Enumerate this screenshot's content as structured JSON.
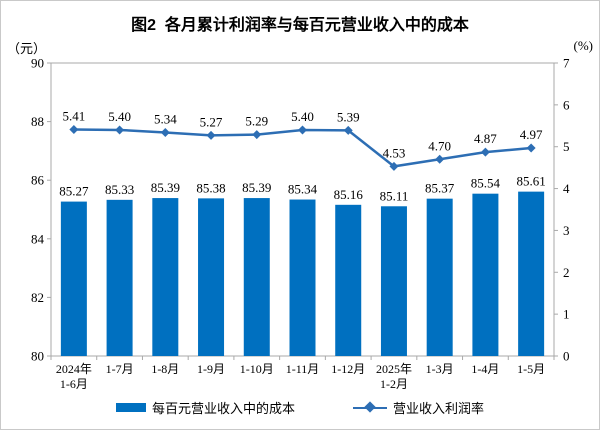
{
  "title": "图2  各月累计利润率与每百元营业收入中的成本",
  "left_axis_unit": "（元）",
  "right_axis_unit": "(%)",
  "colors": {
    "bar": "#0070C0",
    "line": "#2D6EB4",
    "axis": "#A9A9A9",
    "text": "#000000"
  },
  "chart_data": {
    "type": "bar+line combo",
    "title": "图2  各月累计利润率与每百元营业收入中的成本",
    "categories": [
      [
        "2024年",
        "1-6月"
      ],
      [
        "1-7月"
      ],
      [
        "1-8月"
      ],
      [
        "1-9月"
      ],
      [
        "1-10月"
      ],
      [
        "1-11月"
      ],
      [
        "1-12月"
      ],
      [
        "2025年",
        "1-2月"
      ],
      [
        "1-3月"
      ],
      [
        "1-4月"
      ],
      [
        "1-5月"
      ]
    ],
    "series": [
      {
        "name": "每百元营业收入中的成本",
        "type": "bar",
        "axis": "left",
        "unit": "元",
        "values": [
          85.27,
          85.33,
          85.39,
          85.38,
          85.39,
          85.34,
          85.16,
          85.11,
          85.37,
          85.54,
          85.61
        ]
      },
      {
        "name": "营业收入利润率",
        "type": "line",
        "axis": "right",
        "unit": "%",
        "values": [
          5.41,
          5.4,
          5.34,
          5.27,
          5.29,
          5.4,
          5.39,
          4.53,
          4.7,
          4.87,
          4.97
        ]
      }
    ],
    "left_axis": {
      "min": 80,
      "max": 90,
      "ticks": [
        80,
        82,
        84,
        86,
        88,
        90
      ]
    },
    "right_axis": {
      "min": 0,
      "max": 7,
      "ticks": [
        0,
        1,
        2,
        3,
        4,
        5,
        6,
        7
      ]
    },
    "grid": false,
    "legend_position": "bottom"
  }
}
